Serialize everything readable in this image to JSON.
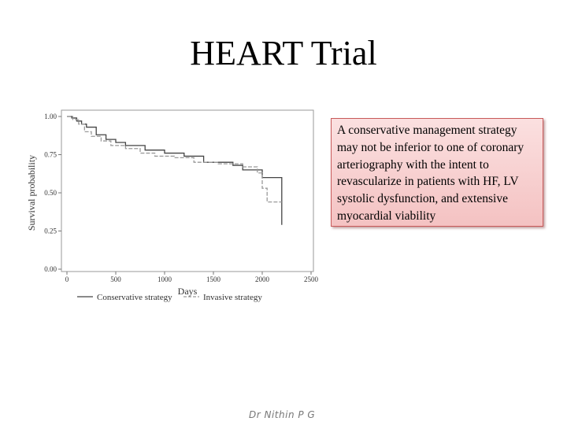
{
  "slide": {
    "title": "HEART Trial",
    "callout": "A conservative management strategy may not be inferior to one of coronary arteriography with the intent to revascularize in patients with HF, LV systolic dysfunction, and extensive  myocardial viability",
    "footer": "Dr Nithin P G"
  },
  "chart_data": {
    "type": "line",
    "xlabel": "Days",
    "ylabel": "Survival probability",
    "xlim": [
      0,
      2500
    ],
    "ylim": [
      0,
      1.0
    ],
    "x_ticks": [
      "0",
      "500",
      "1000",
      "1500",
      "2000",
      "2500"
    ],
    "y_ticks": [
      "0.00",
      "0.25",
      "0.50",
      "0.75",
      "1.00"
    ],
    "grid": false,
    "legend": "bottom",
    "series": [
      {
        "name": "Conservative strategy",
        "color": "#444444",
        "dash": "solid",
        "step": [
          [
            0,
            1.0
          ],
          [
            50,
            0.99
          ],
          [
            100,
            0.97
          ],
          [
            150,
            0.95
          ],
          [
            200,
            0.93
          ],
          [
            300,
            0.88
          ],
          [
            400,
            0.85
          ],
          [
            500,
            0.83
          ],
          [
            600,
            0.81
          ],
          [
            800,
            0.78
          ],
          [
            1000,
            0.76
          ],
          [
            1200,
            0.74
          ],
          [
            1400,
            0.7
          ],
          [
            1700,
            0.68
          ],
          [
            1800,
            0.65
          ],
          [
            2000,
            0.6
          ],
          [
            2200,
            0.6
          ],
          [
            2200,
            0.29
          ]
        ]
      },
      {
        "name": "Invasive strategy",
        "color": "#9a9a9a",
        "dash": "dashed",
        "step": [
          [
            0,
            1.0
          ],
          [
            60,
            0.98
          ],
          [
            120,
            0.95
          ],
          [
            180,
            0.9
          ],
          [
            250,
            0.87
          ],
          [
            350,
            0.84
          ],
          [
            450,
            0.81
          ],
          [
            600,
            0.79
          ],
          [
            750,
            0.76
          ],
          [
            900,
            0.74
          ],
          [
            1100,
            0.73
          ],
          [
            1300,
            0.7
          ],
          [
            1550,
            0.69
          ],
          [
            1800,
            0.67
          ],
          [
            1950,
            0.63
          ],
          [
            2000,
            0.53
          ],
          [
            2050,
            0.44
          ],
          [
            2200,
            0.44
          ]
        ]
      }
    ]
  }
}
